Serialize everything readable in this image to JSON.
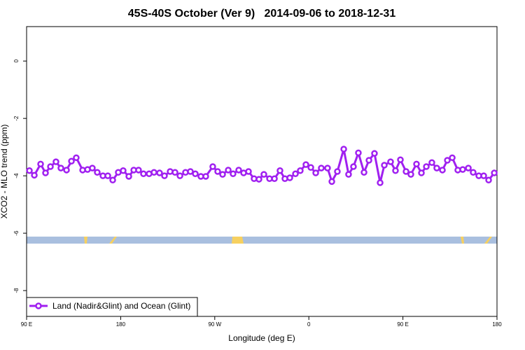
{
  "chart_data": {
    "type": "line",
    "title": "45S-40S October (Ver 9)   2014-09-06 to 2018-12-31",
    "x_label": "Longitude (deg E)",
    "y_label": "XCO2 - MLO trend (ppm)",
    "xlim": [
      90,
      540
    ],
    "xticks": [
      {
        "value": 90,
        "label": "90 E"
      },
      180,
      {
        "value": 270,
        "label": "90 W"
      },
      {
        "value": 360,
        "label": "0"
      },
      {
        "value": 450,
        "label": "90 E"
      },
      {
        "value": 540,
        "label": "180"
      }
    ],
    "ylim": [
      -8.9,
      1.2
    ],
    "yticks": [
      0,
      -2,
      -4,
      -6,
      -8
    ],
    "legend_position": "bottom-left",
    "x": [
      92.7,
      97.4,
      103.4,
      108.1,
      112.8,
      118.1,
      122.8,
      128.2,
      132.9,
      137.5,
      143.6,
      148.3,
      152.9,
      157.6,
      163,
      167.7,
      172.4,
      177.7,
      182.4,
      187.8,
      192.5,
      197.1,
      201.8,
      207.2,
      211.9,
      217.2,
      221.9,
      227.3,
      232,
      236.7,
      242,
      246.7,
      251.4,
      256.7,
      261.4,
      268.1,
      272.8,
      277.5,
      282.9,
      287.5,
      292.9,
      297.6,
      302.3,
      307.6,
      312.3,
      317,
      322.4,
      327.1,
      332.4,
      337.1,
      341.8,
      347.2,
      351.8,
      357.2,
      361.9,
      366.6,
      371.9,
      377.9,
      382,
      387.3,
      393.4,
      398,
      402.7,
      407.4,
      412.8,
      417.5,
      422.8,
      428.2,
      432.2,
      438.2,
      442.9,
      447.6,
      453,
      457.6,
      463,
      467.7,
      472.4,
      477.7,
      482.4,
      487.8,
      492.5,
      497.2,
      502.5,
      507.2,
      512.6,
      517.2,
      522.6,
      527.3,
      532,
      537.4
    ],
    "series": [
      {
        "name": "Land (Nadir&Glint) and Ocean (Glint)",
        "color": "#a020f0",
        "values": [
          -3.82,
          -3.98,
          -3.59,
          -3.9,
          -3.68,
          -3.51,
          -3.73,
          -3.8,
          -3.49,
          -3.37,
          -3.8,
          -3.78,
          -3.73,
          -3.88,
          -4.0,
          -4.0,
          -4.15,
          -3.88,
          -3.82,
          -4.02,
          -3.8,
          -3.8,
          -3.93,
          -3.93,
          -3.88,
          -3.9,
          -4.0,
          -3.85,
          -3.88,
          -4.0,
          -3.88,
          -3.85,
          -3.93,
          -4.02,
          -4.02,
          -3.68,
          -3.85,
          -3.95,
          -3.8,
          -3.93,
          -3.8,
          -3.9,
          -3.85,
          -4.1,
          -4.12,
          -3.95,
          -4.1,
          -4.1,
          -3.82,
          -4.1,
          -4.07,
          -3.93,
          -3.82,
          -3.61,
          -3.71,
          -3.9,
          -3.73,
          -3.73,
          -4.2,
          -3.85,
          -3.07,
          -3.95,
          -3.68,
          -3.2,
          -3.88,
          -3.46,
          -3.22,
          -4.24,
          -3.63,
          -3.51,
          -3.82,
          -3.44,
          -3.85,
          -3.95,
          -3.59,
          -3.9,
          -3.68,
          -3.54,
          -3.73,
          -3.8,
          -3.46,
          -3.37,
          -3.8,
          -3.78,
          -3.73,
          -3.88,
          -4.0,
          -4.0,
          -4.15,
          -3.9
        ]
      }
    ]
  }
}
